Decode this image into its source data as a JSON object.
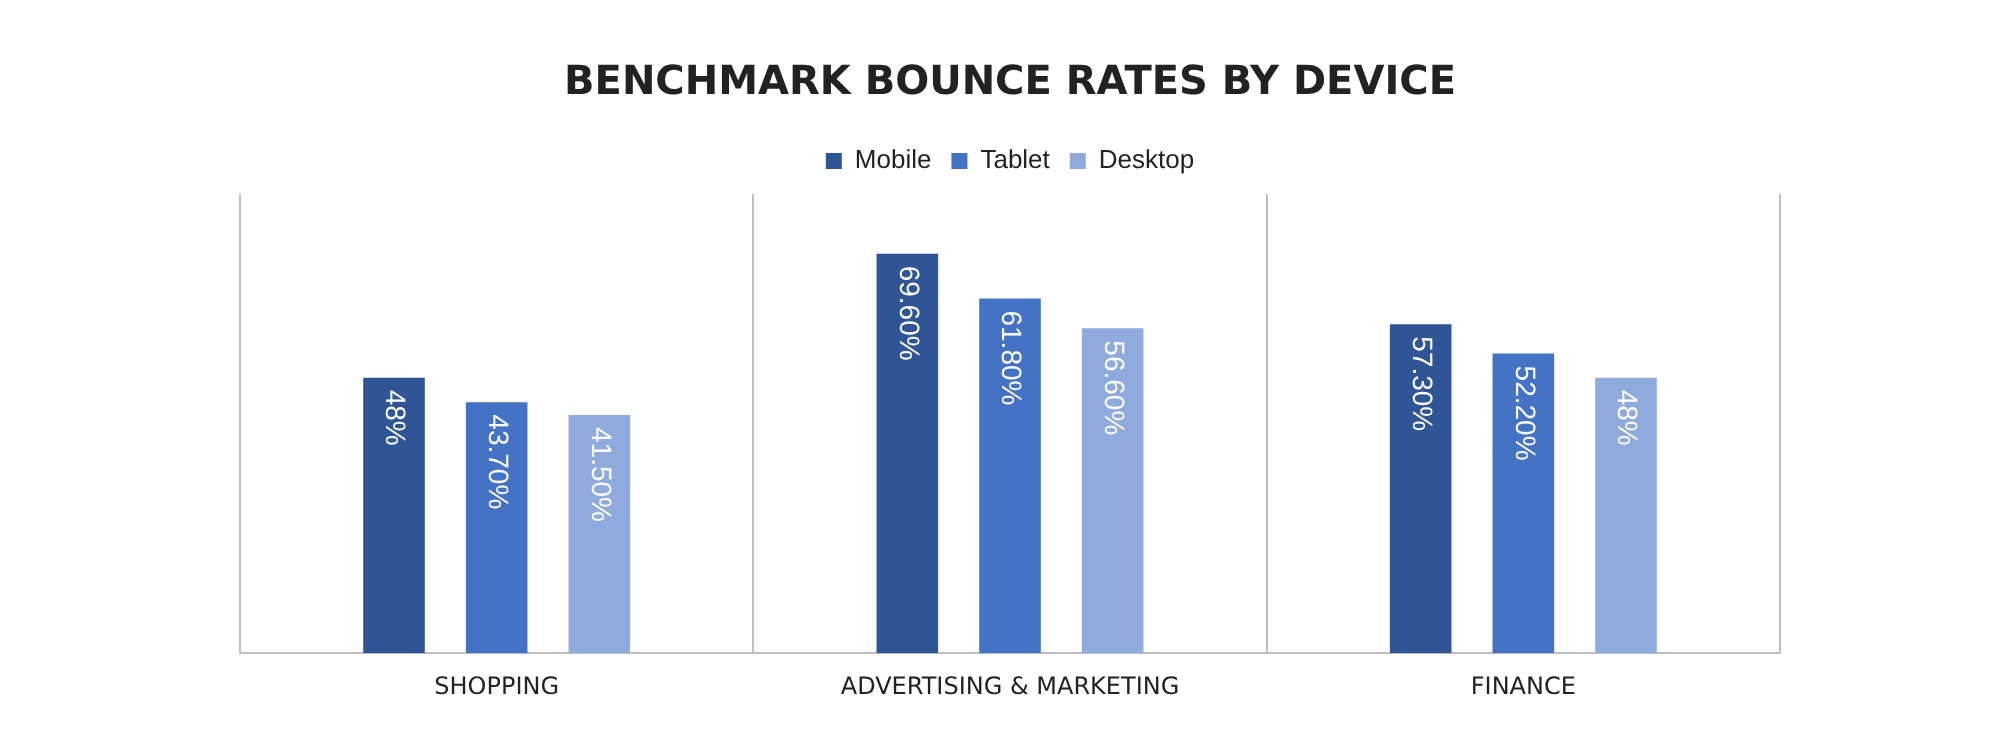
{
  "chart_data": {
    "type": "bar",
    "title": "BENCHMARK BOUNCE RATES BY DEVICE",
    "categories": [
      "SHOPPING",
      "ADVERTISING & MARKETING",
      "FINANCE"
    ],
    "series": [
      {
        "name": "Mobile",
        "color": "#2f5597",
        "values": [
          48,
          69.6,
          57.3
        ],
        "value_labels": [
          "48%",
          "69.60%",
          "57.30%"
        ]
      },
      {
        "name": "Tablet",
        "color": "#4472c4",
        "values": [
          43.7,
          61.8,
          52.2
        ],
        "value_labels": [
          "43.70%",
          "61.80%",
          "52.20%"
        ]
      },
      {
        "name": "Desktop",
        "color": "#8faadc",
        "values": [
          41.5,
          56.6,
          48
        ],
        "value_labels": [
          "41.50%",
          "56.60%",
          "48%"
        ]
      }
    ],
    "ylim": [
      0,
      80
    ],
    "grid": "x",
    "legend": "top",
    "tick_labels": "x"
  }
}
